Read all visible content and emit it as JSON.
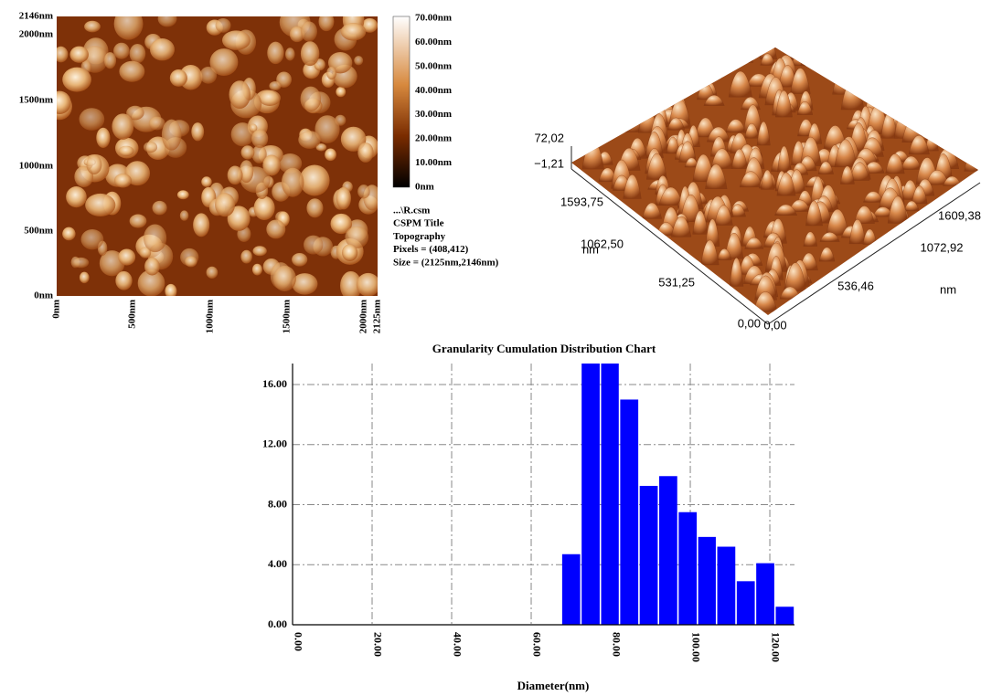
{
  "afm_image": {
    "y_labels": [
      "2146nm",
      "2000nm",
      "1500nm",
      "1000nm",
      "500nm",
      "0nm"
    ],
    "x_labels": [
      "0nm",
      "500nm",
      "1000nm",
      "1500nm",
      "2000nm",
      "2125nm"
    ],
    "colorbar_labels": [
      "70.00nm",
      "60.00nm",
      "50.00nm",
      "40.00nm",
      "30.00nm",
      "20.00nm",
      "10.00nm",
      "0nm"
    ],
    "info": [
      "...\\R.csm",
      "CSPM Title",
      "Topography",
      "Pixels = (408,412)",
      "Size = (2125nm,2146nm)"
    ]
  },
  "afm_3d": {
    "z_labels": [
      "72,02",
      "−1,21"
    ],
    "y_labels": [
      "1593,75",
      "1062,50",
      "531,25",
      "0,00"
    ],
    "y_title": "nm",
    "x_labels": [
      "0,00",
      "536,46",
      "1072,92",
      "1609,38"
    ],
    "x_title": "nm"
  },
  "chart_data": {
    "type": "histogram",
    "title": "Granularity Cumulation Distribution Chart",
    "x_label": "Diameter(nm)",
    "bins": [
      67.6,
      72.5,
      77.4,
      82.2,
      87.1,
      92.0,
      96.9,
      101.8,
      106.6,
      111.5,
      116.4,
      121.3,
      126.2
    ],
    "values": [
      4.7,
      17.4,
      17.4,
      15.0,
      9.25,
      9.9,
      7.5,
      5.85,
      5.2,
      2.9,
      4.1,
      1.2
    ],
    "color": "#0000ff",
    "xlim": [
      0,
      126.2
    ],
    "ylim": [
      0,
      17.4
    ],
    "xticks": [
      {
        "value": 0,
        "label": "0.00"
      },
      {
        "value": 20,
        "label": "20.00"
      },
      {
        "value": 40,
        "label": "40.00"
      },
      {
        "value": 60,
        "label": "60.00"
      },
      {
        "value": 80,
        "label": "80.00"
      },
      {
        "value": 100,
        "label": "100.00"
      },
      {
        "value": 120,
        "label": "120.00"
      }
    ],
    "yticks": [
      {
        "value": 0,
        "label": "0.00"
      },
      {
        "value": 4,
        "label": "4.00"
      },
      {
        "value": 8,
        "label": "8.00"
      },
      {
        "value": 12,
        "label": "12.00"
      },
      {
        "value": 16,
        "label": "16.00"
      }
    ],
    "grid": true
  }
}
